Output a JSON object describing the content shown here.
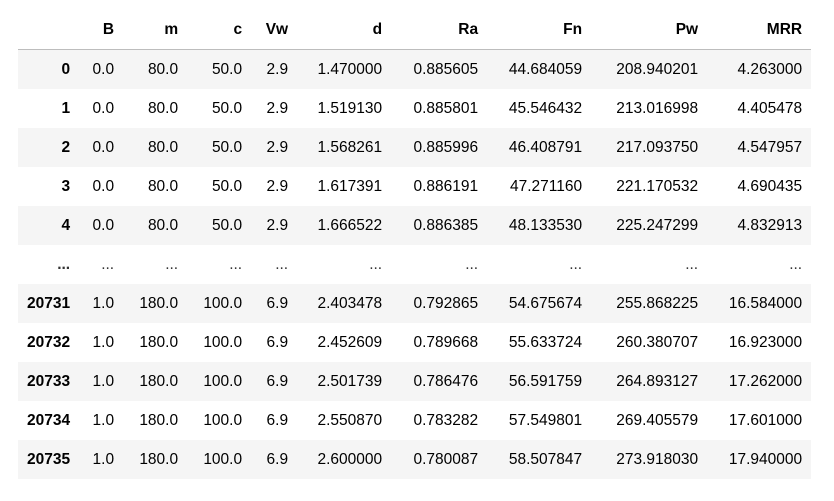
{
  "columns": [
    "",
    "B",
    "m",
    "c",
    "Vw",
    "d",
    "Ra",
    "Fn",
    "Pw",
    "MRR"
  ],
  "rows": [
    [
      "0",
      "0.0",
      "80.0",
      "50.0",
      "2.9",
      "1.470000",
      "0.885605",
      "44.684059",
      "208.940201",
      "4.263000"
    ],
    [
      "1",
      "0.0",
      "80.0",
      "50.0",
      "2.9",
      "1.519130",
      "0.885801",
      "45.546432",
      "213.016998",
      "4.405478"
    ],
    [
      "2",
      "0.0",
      "80.0",
      "50.0",
      "2.9",
      "1.568261",
      "0.885996",
      "46.408791",
      "217.093750",
      "4.547957"
    ],
    [
      "3",
      "0.0",
      "80.0",
      "50.0",
      "2.9",
      "1.617391",
      "0.886191",
      "47.271160",
      "221.170532",
      "4.690435"
    ],
    [
      "4",
      "0.0",
      "80.0",
      "50.0",
      "2.9",
      "1.666522",
      "0.886385",
      "48.133530",
      "225.247299",
      "4.832913"
    ],
    [
      "...",
      "...",
      "...",
      "...",
      "...",
      "...",
      "...",
      "...",
      "...",
      "..."
    ],
    [
      "20731",
      "1.0",
      "180.0",
      "100.0",
      "6.9",
      "2.403478",
      "0.792865",
      "54.675674",
      "255.868225",
      "16.584000"
    ],
    [
      "20732",
      "1.0",
      "180.0",
      "100.0",
      "6.9",
      "2.452609",
      "0.789668",
      "55.633724",
      "260.380707",
      "16.923000"
    ],
    [
      "20733",
      "1.0",
      "180.0",
      "100.0",
      "6.9",
      "2.501739",
      "0.786476",
      "56.591759",
      "264.893127",
      "17.262000"
    ],
    [
      "20734",
      "1.0",
      "180.0",
      "100.0",
      "6.9",
      "2.550870",
      "0.783282",
      "57.549801",
      "269.405579",
      "17.601000"
    ],
    [
      "20735",
      "1.0",
      "180.0",
      "100.0",
      "6.9",
      "2.600000",
      "0.780087",
      "58.507847",
      "273.918030",
      "17.940000"
    ]
  ],
  "colors": {
    "stripe": "#f5f5f5",
    "header_border": "#bdbdbd"
  }
}
